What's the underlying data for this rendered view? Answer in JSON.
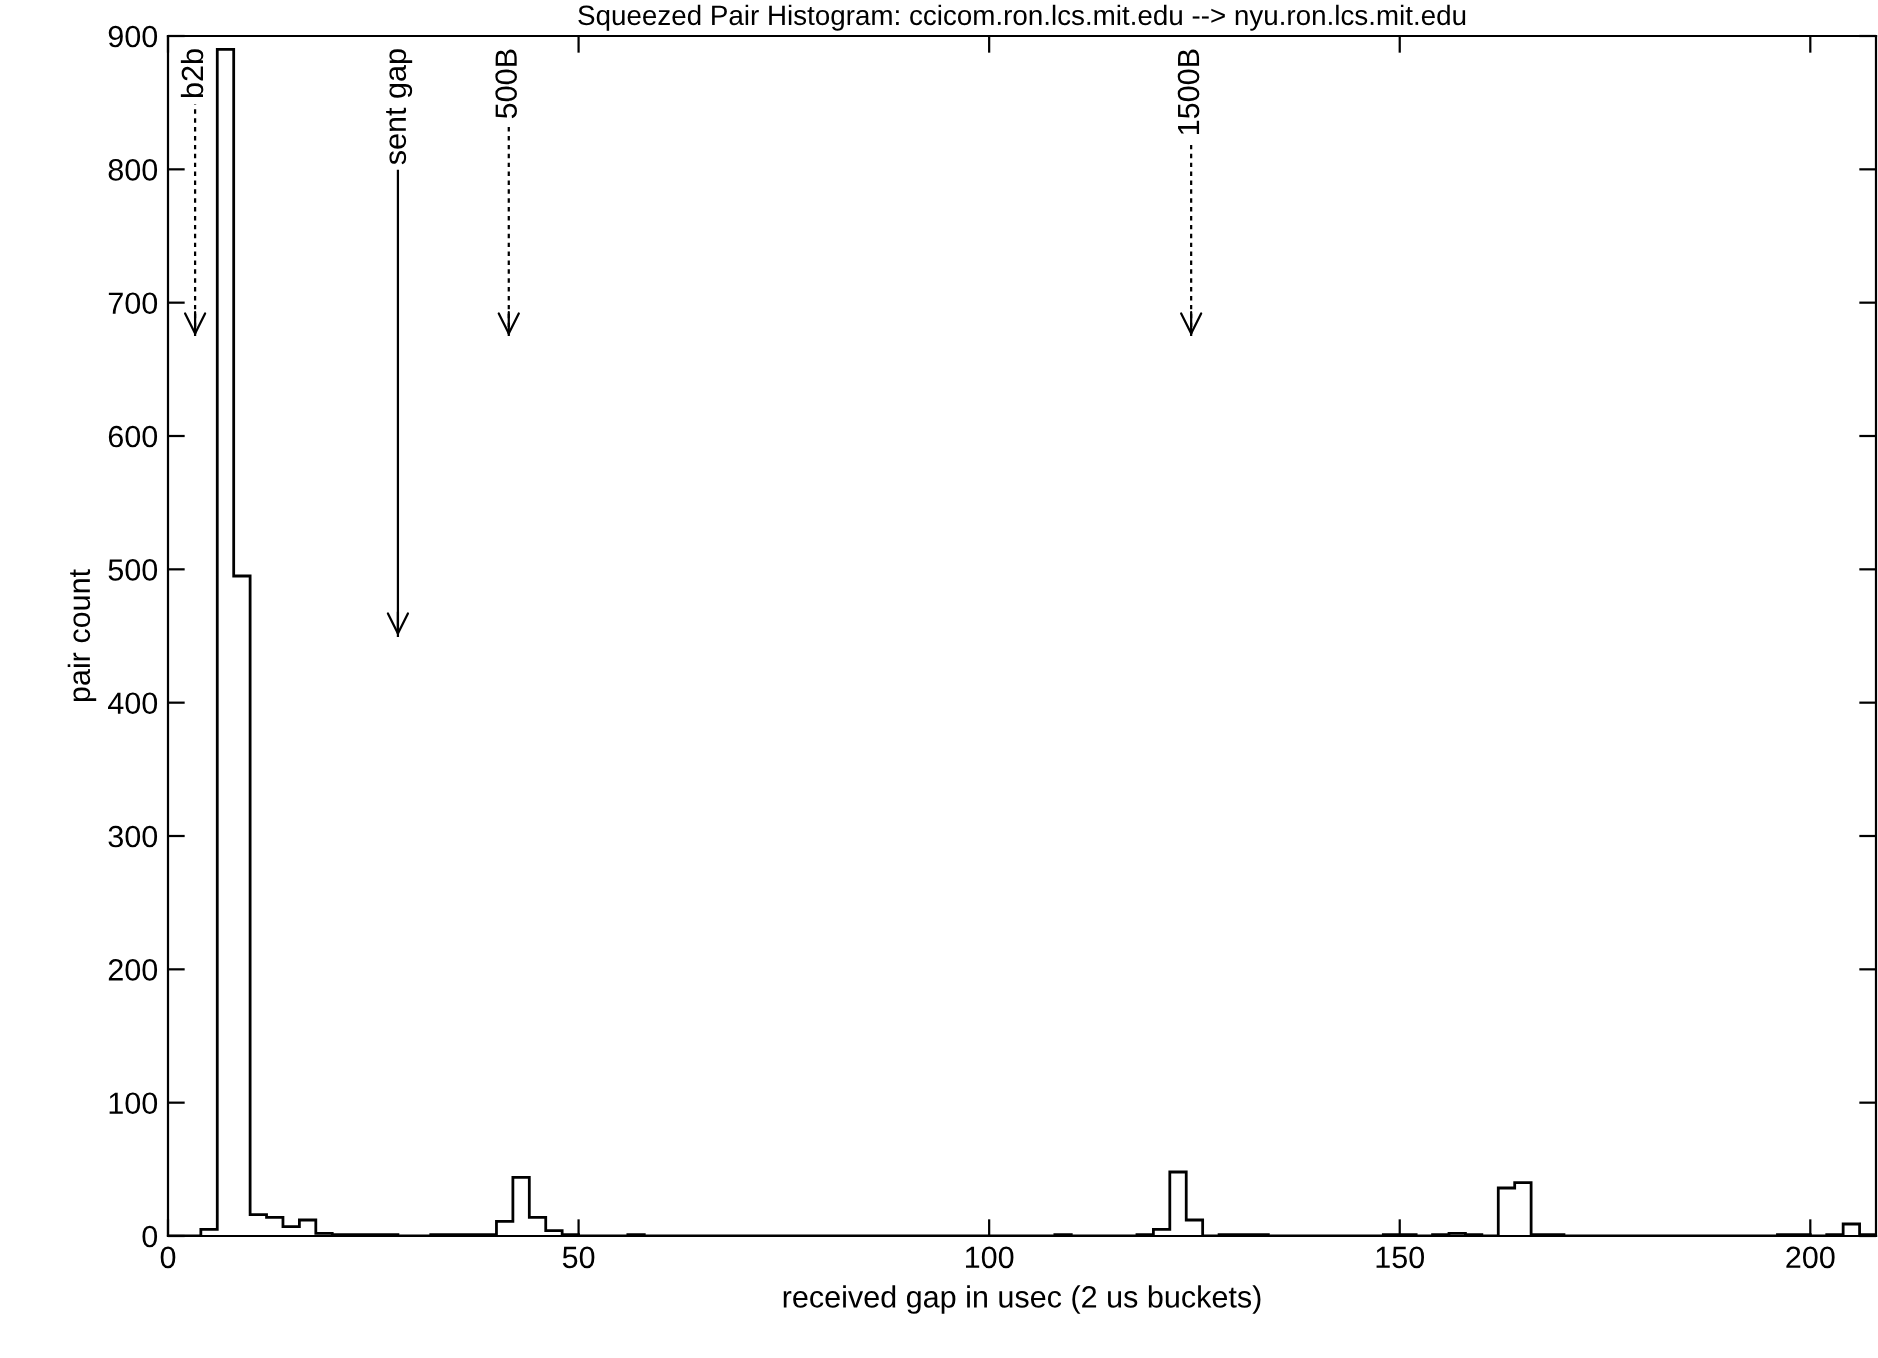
{
  "chart_data": {
    "type": "histogram",
    "title": "Squeezed Pair Histogram: ccicom.ron.lcs.mit.edu --> nyu.ron.lcs.mit.edu",
    "xlabel": "received gap in usec (2 us buckets)",
    "ylabel": "pair count",
    "bins": [
      0,
      2,
      4,
      6,
      8,
      10,
      12,
      14,
      16,
      18,
      20,
      22,
      24,
      26,
      28,
      30,
      32,
      34,
      36,
      38,
      40,
      42,
      44,
      46,
      48,
      50,
      52,
      54,
      56,
      58,
      60,
      62,
      64,
      66,
      68,
      70,
      72,
      74,
      76,
      78,
      80,
      82,
      84,
      86,
      88,
      90,
      92,
      94,
      96,
      98,
      100,
      102,
      104,
      106,
      108,
      110,
      112,
      114,
      116,
      118,
      120,
      122,
      124,
      126,
      128,
      130,
      132,
      134,
      136,
      138,
      140,
      142,
      144,
      146,
      148,
      150,
      152,
      154,
      156,
      158,
      160,
      162,
      164,
      166,
      168,
      170,
      172,
      174,
      176,
      178,
      180,
      182,
      184,
      186,
      188,
      190,
      192,
      194,
      196,
      198,
      200,
      202,
      204,
      206,
      208
    ],
    "values": [
      0,
      0,
      5,
      890,
      495,
      16,
      14,
      7,
      12,
      2,
      1,
      1,
      1,
      1,
      0,
      0,
      1,
      1,
      1,
      1,
      11,
      44,
      14,
      4,
      1,
      0,
      0,
      0,
      1,
      0,
      0,
      0,
      0,
      0,
      0,
      0,
      0,
      0,
      0,
      0,
      0,
      0,
      0,
      0,
      0,
      0,
      0,
      0,
      0,
      0,
      0,
      0,
      0,
      0,
      1,
      0,
      0,
      0,
      0,
      1,
      5,
      48,
      12,
      0,
      1,
      1,
      1,
      0,
      0,
      0,
      0,
      0,
      0,
      0,
      1,
      1,
      0,
      1,
      2,
      1,
      0,
      36,
      40,
      1,
      1,
      0,
      0,
      0,
      0,
      0,
      0,
      0,
      0,
      0,
      0,
      0,
      0,
      0,
      1,
      1,
      0,
      1,
      9,
      1
    ],
    "color": "#000000",
    "xlim": [
      0,
      208
    ],
    "xticks": [
      0,
      50,
      100,
      150,
      200
    ],
    "ylim": [
      0,
      900
    ],
    "yticks": [
      0,
      100,
      200,
      300,
      400,
      500,
      600,
      700,
      800,
      900
    ],
    "grid": false,
    "ref_lines": [
      {
        "axis": "x",
        "value": 3.3,
        "label": "b2b",
        "line_style": "dotted"
      },
      {
        "axis": "x",
        "value": 28,
        "label": "sent gap",
        "line_style": "solid"
      },
      {
        "axis": "x",
        "value": 41.5,
        "label": "500B",
        "line_style": "dotted"
      },
      {
        "axis": "x",
        "value": 124.6,
        "label": "1500B",
        "line_style": "dotted"
      }
    ]
  }
}
